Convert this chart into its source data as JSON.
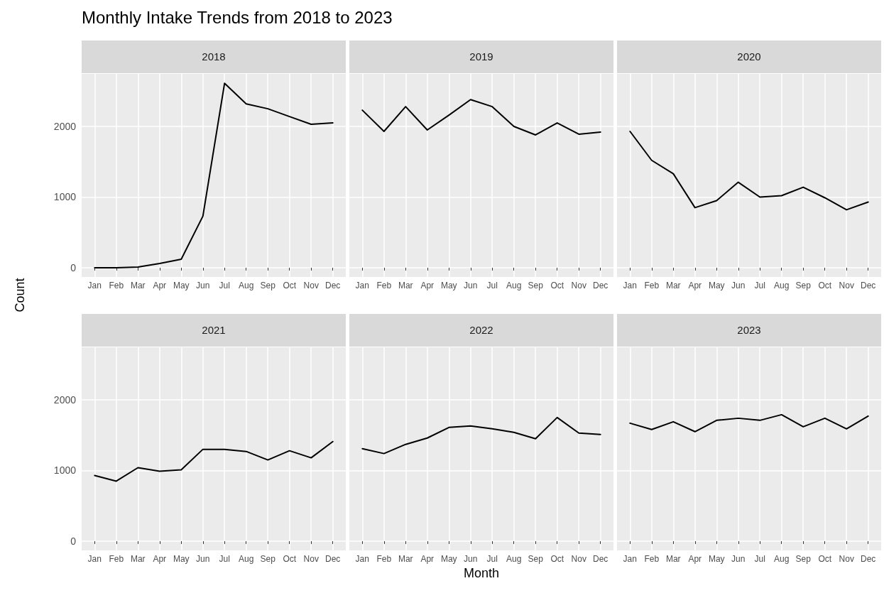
{
  "chart_data": [
    {
      "type": "line",
      "title": "2018",
      "ylabel": "Count",
      "annotations": [
        "Monthly Intake Trends from 2018 to 2023"
      ],
      "categories": [
        "Jan",
        "Feb",
        "Mar",
        "Apr",
        "May",
        "Jun",
        "Jul",
        "Aug",
        "Sep",
        "Oct",
        "Nov",
        "Dec"
      ],
      "series": [
        {
          "color": "#000000",
          "values": [
            0,
            0,
            10,
            60,
            120,
            730,
            2610,
            2320,
            2250,
            2140,
            2030,
            2050
          ]
        }
      ],
      "ylim": [
        -131,
        2744
      ],
      "yticks": [
        0,
        1000,
        2000
      ],
      "grid": true
    },
    {
      "type": "line",
      "title": "2019",
      "categories": [
        "Jan",
        "Feb",
        "Mar",
        "Apr",
        "May",
        "Jun",
        "Jul",
        "Aug",
        "Sep",
        "Oct",
        "Nov",
        "Dec"
      ],
      "series": [
        {
          "color": "#000000",
          "values": [
            2230,
            1930,
            2280,
            1950,
            2160,
            2380,
            2280,
            2000,
            1880,
            2050,
            1890,
            1920
          ]
        }
      ],
      "ylim": [
        -131,
        2744
      ],
      "yticks": [
        0,
        1000,
        2000
      ],
      "grid": true,
      "tick_labels": "x"
    },
    {
      "type": "line",
      "title": "2020",
      "categories": [
        "Jan",
        "Feb",
        "Mar",
        "Apr",
        "May",
        "Jun",
        "Jul",
        "Aug",
        "Sep",
        "Oct",
        "Nov",
        "Dec"
      ],
      "series": [
        {
          "color": "#000000",
          "values": [
            1930,
            1520,
            1330,
            850,
            950,
            1210,
            1000,
            1020,
            1140,
            990,
            820,
            930
          ]
        }
      ],
      "ylim": [
        -131,
        2744
      ],
      "yticks": [
        0,
        1000,
        2000
      ],
      "grid": true,
      "tick_labels": "x"
    },
    {
      "type": "line",
      "title": "2021",
      "categories": [
        "Jan",
        "Feb",
        "Mar",
        "Apr",
        "May",
        "Jun",
        "Jul",
        "Aug",
        "Sep",
        "Oct",
        "Nov",
        "Dec"
      ],
      "series": [
        {
          "color": "#000000",
          "values": [
            930,
            850,
            1040,
            990,
            1010,
            1300,
            1300,
            1270,
            1150,
            1280,
            1180,
            1410
          ]
        }
      ],
      "ylim": [
        -131,
        2744
      ],
      "yticks": [
        0,
        1000,
        2000
      ],
      "grid": true
    },
    {
      "type": "line",
      "title": "2022",
      "xlabel": "Month",
      "categories": [
        "Jan",
        "Feb",
        "Mar",
        "Apr",
        "May",
        "Jun",
        "Jul",
        "Aug",
        "Sep",
        "Oct",
        "Nov",
        "Dec"
      ],
      "series": [
        {
          "color": "#000000",
          "values": [
            1310,
            1240,
            1370,
            1460,
            1610,
            1630,
            1590,
            1540,
            1450,
            1750,
            1530,
            1510
          ]
        }
      ],
      "ylim": [
        -131,
        2744
      ],
      "yticks": [
        0,
        1000,
        2000
      ],
      "grid": true,
      "tick_labels": "x"
    },
    {
      "type": "line",
      "title": "2023",
      "categories": [
        "Jan",
        "Feb",
        "Mar",
        "Apr",
        "May",
        "Jun",
        "Jul",
        "Aug",
        "Sep",
        "Oct",
        "Nov",
        "Dec"
      ],
      "series": [
        {
          "color": "#000000",
          "values": [
            1670,
            1580,
            1690,
            1550,
            1710,
            1740,
            1710,
            1790,
            1620,
            1740,
            1590,
            1770
          ]
        }
      ],
      "ylim": [
        -131,
        2744
      ],
      "yticks": [
        0,
        1000,
        2000
      ],
      "grid": true,
      "tick_labels": "x"
    }
  ]
}
